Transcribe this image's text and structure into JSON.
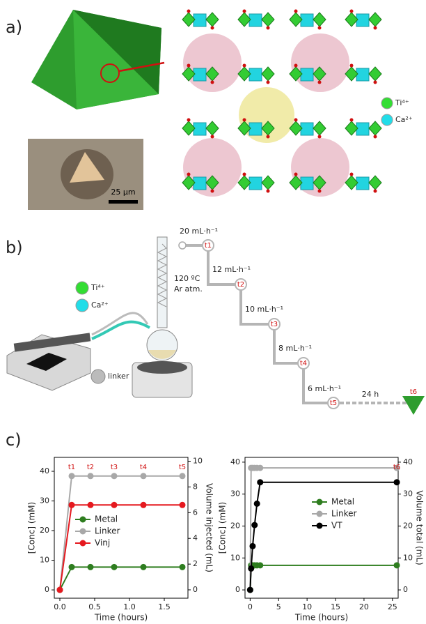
{
  "panels": {
    "a": {
      "label": "a)",
      "scale_bar": "25 µm",
      "legend": [
        "Ti⁴⁺",
        "Ca²⁺"
      ]
    },
    "b": {
      "label": "b)",
      "legend": [
        "Ti⁴⁺",
        "Ca²⁺"
      ],
      "linker": "linker",
      "conditions": [
        "120 ºC",
        "Ar atm."
      ],
      "flow_rates": [
        "20 mL·h⁻¹",
        "12 mL·h⁻¹",
        "10 mL·h⁻¹",
        "8 mL·h⁻¹",
        "6 mL·h⁻¹"
      ],
      "hold": "24 h",
      "steps": [
        "t1",
        "t2",
        "t3",
        "t4",
        "t5",
        "t6"
      ]
    },
    "c": {
      "label": "c)"
    }
  },
  "chart_data": [
    {
      "type": "line",
      "xlabel": "Time (hours)",
      "ylabel": "[Conc] (mM)",
      "y2label": "Volume injected (mL)",
      "xlim": [
        -0.08,
        1.84
      ],
      "xticks": [
        {
          "value": 0,
          "label": "0.0"
        },
        {
          "value": 0.5,
          "label": "0.5"
        },
        {
          "value": 1,
          "label": "1.0"
        },
        {
          "value": 1.5,
          "label": "1.5"
        }
      ],
      "ylim": [
        -2.8,
        44.7
      ],
      "yticks": [
        0,
        10,
        20,
        30,
        40
      ],
      "y2lim": [
        -0.65,
        10.3
      ],
      "y2ticks": [
        0,
        2,
        4,
        6,
        8,
        10
      ],
      "x": [
        0,
        0.17,
        0.44,
        0.78,
        1.2,
        1.76
      ],
      "series": [
        {
          "name": "Metal",
          "color": "#2e7d1f",
          "values": [
            0,
            7.7,
            7.7,
            7.7,
            7.7,
            7.7
          ]
        },
        {
          "name": "Linker",
          "color": "#a8a8a8",
          "values": [
            0,
            38.4,
            38.4,
            38.4,
            38.4,
            38.4
          ]
        },
        {
          "name": "Vinj",
          "color": "#e5191f",
          "axis": "y2",
          "values": [
            0,
            6.6,
            6.6,
            6.6,
            6.6,
            6.6
          ]
        }
      ],
      "annotations": [
        {
          "text": "t1",
          "x": 0.17
        },
        {
          "text": "t2",
          "x": 0.44
        },
        {
          "text": "t3",
          "x": 0.78
        },
        {
          "text": "t4",
          "x": 1.2
        },
        {
          "text": "t5",
          "x": 1.76
        }
      ],
      "legend": "center right"
    },
    {
      "type": "line",
      "xlabel": "Time (hours)",
      "ylabel": "[Conc] (mM)",
      "y2label": "Volume total (mL)",
      "xlim": [
        -0.9,
        26.0
      ],
      "xticks": [
        0,
        5,
        10,
        15,
        20,
        25
      ],
      "ylim": [
        -2.6,
        41.5
      ],
      "yticks": [
        0,
        10,
        20,
        30,
        40
      ],
      "y2lim": [
        -2.6,
        41.5
      ],
      "y2ticks": [
        0,
        10,
        20,
        30,
        40
      ],
      "x": [
        0,
        0.17,
        0.44,
        0.78,
        1.2,
        1.76,
        25.76
      ],
      "series": [
        {
          "name": "Metal",
          "color": "#2e7d1f",
          "values": [
            0,
            7.7,
            7.7,
            7.7,
            7.7,
            7.7,
            7.7
          ]
        },
        {
          "name": "Linker",
          "color": "#a8a8a8",
          "values": [
            0,
            38.2,
            38.2,
            38.2,
            38.2,
            38.2,
            38.2
          ]
        },
        {
          "name": "VT",
          "color": "#000000",
          "axis": "y2",
          "values": [
            0,
            6.7,
            13.7,
            20.3,
            27,
            33.7,
            33.7
          ]
        }
      ],
      "annotations": [
        {
          "text": "t6",
          "x": 25.76
        }
      ],
      "legend": "upper right"
    }
  ]
}
